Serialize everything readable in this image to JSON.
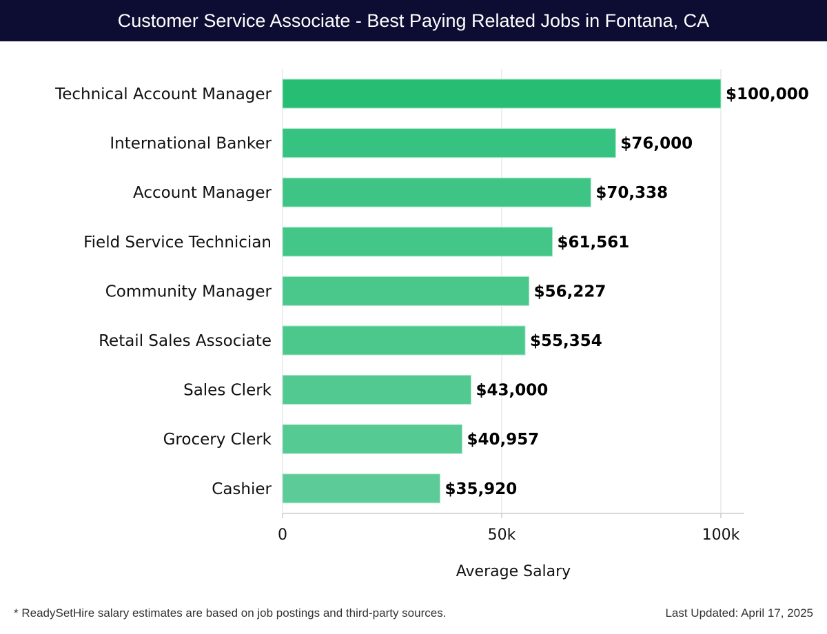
{
  "header": {
    "title": "Customer Service Associate - Best Paying Related Jobs in Fontana, CA"
  },
  "chart_data": {
    "type": "bar",
    "orientation": "horizontal",
    "title": "Customer Service Associate - Best Paying Related Jobs in Fontana, CA",
    "categories": [
      "Technical Account Manager",
      "International Banker",
      "Account Manager",
      "Field Service Technician",
      "Community Manager",
      "Retail Sales Associate",
      "Sales Clerk",
      "Grocery Clerk",
      "Cashier"
    ],
    "values": [
      100000,
      76000,
      70338,
      61561,
      56227,
      55354,
      43000,
      40957,
      35920
    ],
    "value_labels": [
      "$100,000",
      "$76,000",
      "$70,338",
      "$61,561",
      "$56,227",
      "$55,354",
      "$43,000",
      "$40,957",
      "$35,920"
    ],
    "bar_colors": [
      "#27be74",
      "#36c280",
      "#3ec484",
      "#44c688",
      "#4ac78b",
      "#4dc88d",
      "#52c990",
      "#55ca93",
      "#5ccb98"
    ],
    "xlabel": "Average Salary",
    "ylabel": "",
    "xlim": [
      0,
      105000
    ],
    "xticks": [
      0,
      50000,
      100000
    ],
    "xtick_labels": [
      "0",
      "50k",
      "100k"
    ],
    "grid": true
  },
  "footer": {
    "note": "* ReadySetHire salary estimates are based on job postings and third-party sources.",
    "updated": "Last Updated: April 17, 2025"
  }
}
